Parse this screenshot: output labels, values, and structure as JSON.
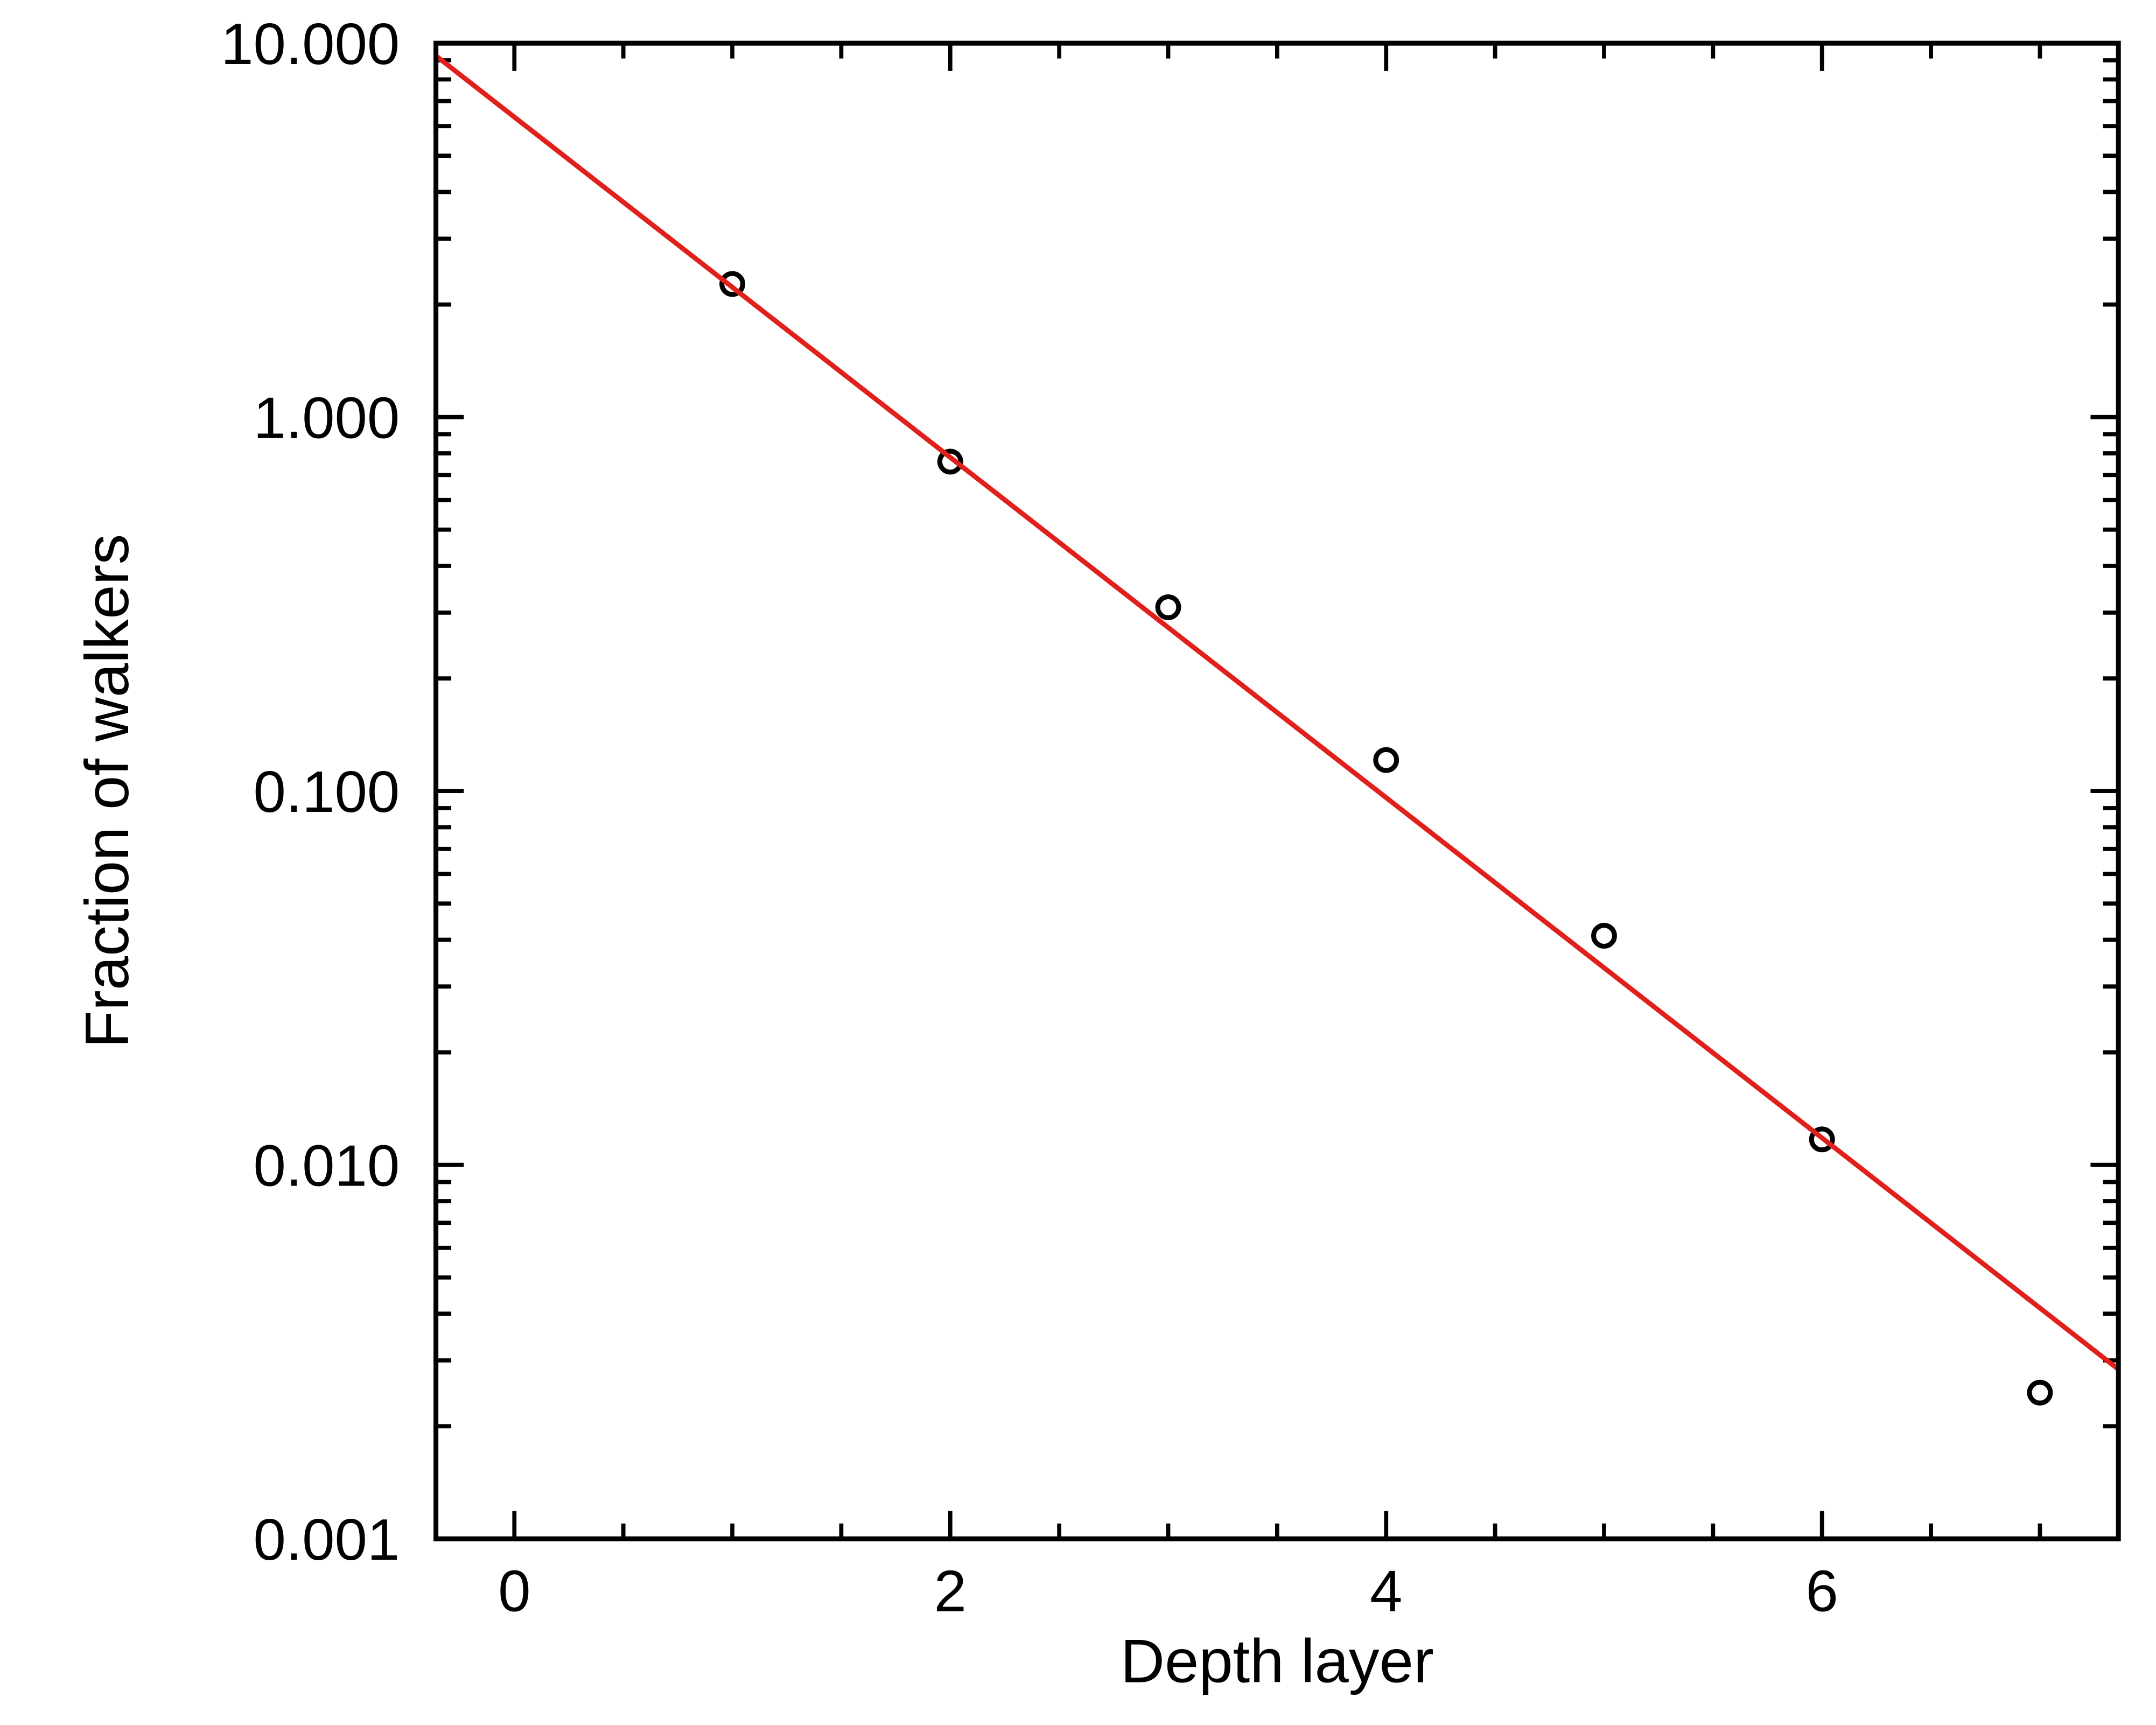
{
  "chart_data": {
    "type": "scatter",
    "xlabel": "Depth layer",
    "ylabel": "Fraction of walkers",
    "log_y": true,
    "xlim": [
      -0.36,
      7.36
    ],
    "ylim": [
      0.001,
      10
    ],
    "xticks": [
      0,
      2,
      4,
      6
    ],
    "minor_xticks": [
      0.5,
      1,
      1.5,
      2.5,
      3,
      3.5,
      4.5,
      5,
      5.5,
      6.5,
      7
    ],
    "yticks": [
      {
        "value": 0.001,
        "label": "0.001"
      },
      {
        "value": 0.01,
        "label": "0.010"
      },
      {
        "value": 0.1,
        "label": "0.100"
      },
      {
        "value": 1,
        "label": "1.000"
      },
      {
        "value": 10,
        "label": "10.000"
      }
    ],
    "minor_yticks": [
      0.002,
      0.003,
      0.004,
      0.005,
      0.006,
      0.007,
      0.008,
      0.009,
      0.02,
      0.03,
      0.04,
      0.05,
      0.06,
      0.07,
      0.08,
      0.09,
      0.2,
      0.3,
      0.4,
      0.5,
      0.6,
      0.7,
      0.8,
      0.9,
      2,
      3,
      4,
      5,
      6,
      7,
      8,
      9
    ],
    "series": [
      {
        "style": "markers",
        "color": "#000000",
        "x": [
          1,
          2,
          3,
          4,
          5,
          6,
          7
        ],
        "values": [
          2.27,
          0.76,
          0.31,
          0.121,
          0.041,
          0.0117,
          0.00246
        ]
      },
      {
        "style": "line",
        "color": "#e0201b",
        "x": [
          -0.36,
          7.36
        ],
        "values": [
          9.25,
          0.00284
        ]
      }
    ]
  }
}
